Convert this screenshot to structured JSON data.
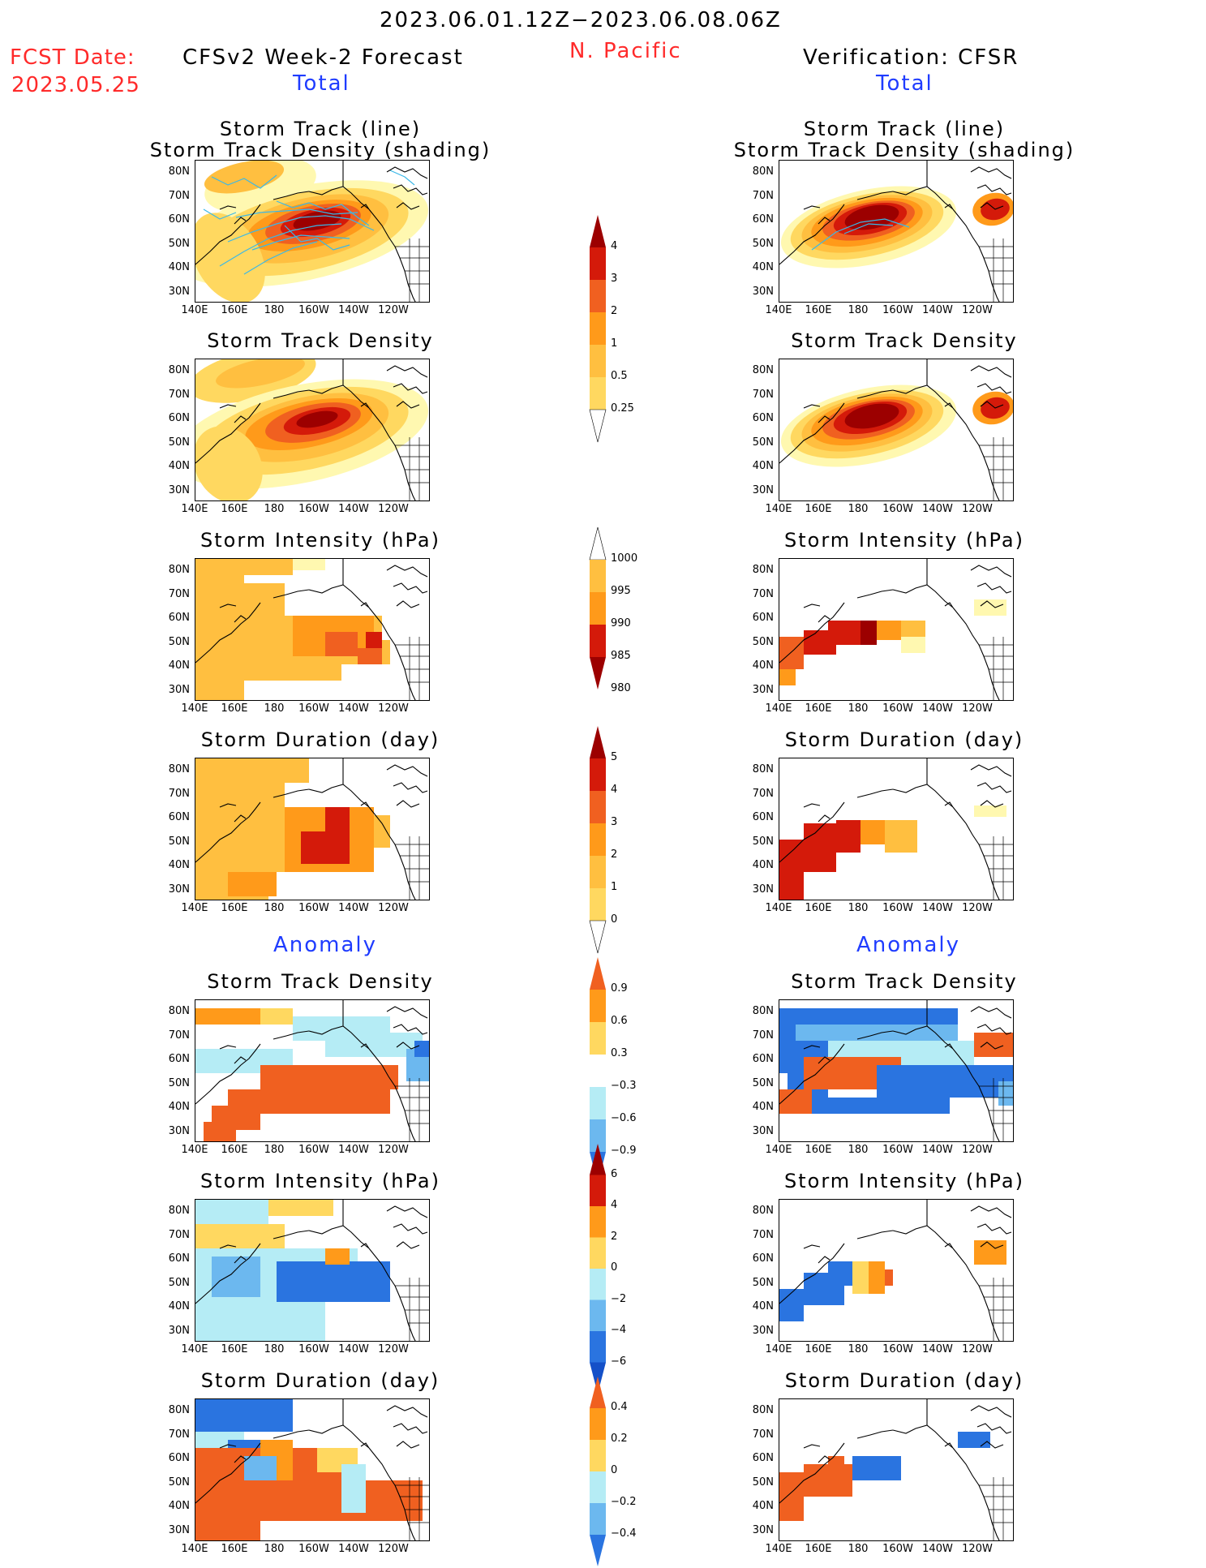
{
  "header": {
    "period": "2023.06.01.12Z−2023.06.08.06Z",
    "fcst_label": "FCST Date:",
    "fcst_date": "2023.05.25",
    "left_model": "CFSv2 Week-2 Forecast",
    "region": "N. Pacific",
    "right_model": "Verification: CFSR",
    "total_label": "Total",
    "anomaly_label": "Anomaly"
  },
  "axes": {
    "x_ticks": [
      "140E",
      "160E",
      "180",
      "160W",
      "140W",
      "120W"
    ],
    "y_ticks": [
      "80N",
      "70N",
      "60N",
      "50N",
      "40N",
      "30N"
    ]
  },
  "colors": {
    "yellow_light": "#fff8b0",
    "yellow": "#ffd860",
    "orange_light": "#ffbf40",
    "orange": "#ff9a1a",
    "orange_red": "#f06020",
    "red": "#d41a0a",
    "dark_red": "#9c0000",
    "light_blue": "#b5ecf5",
    "mid_blue": "#6cb8ef",
    "blue": "#2a74e0",
    "deep_blue": "#1450c8",
    "track_line": "#3ab8e8"
  },
  "chart_data": [
    {
      "type": "heatmap",
      "panel": "left-total-1",
      "title_line1": "Storm Track (line)",
      "title_line2": "Storm Track Density (shading)",
      "colorbar_levels": [
        0.25,
        0.5,
        1,
        2,
        3,
        4
      ],
      "colorbar_labels": [
        "4",
        "3",
        "2",
        "1",
        "0.5",
        "0.25"
      ]
    },
    {
      "type": "heatmap",
      "panel": "left-total-2",
      "title": "Storm Track Density"
    },
    {
      "type": "heatmap",
      "panel": "left-total-3",
      "title": "Storm Intensity (hPa)",
      "colorbar_levels": [
        980,
        985,
        990,
        995,
        1000
      ],
      "colorbar_labels": [
        "1000",
        "995",
        "990",
        "985",
        "980"
      ]
    },
    {
      "type": "heatmap",
      "panel": "left-total-4",
      "title": "Storm Duration (day)",
      "colorbar_levels": [
        0,
        1,
        2,
        3,
        4,
        5
      ],
      "colorbar_labels": [
        "5",
        "4",
        "3",
        "2",
        "1",
        "0"
      ]
    },
    {
      "type": "heatmap",
      "panel": "left-anom-1",
      "title": "Storm Track Density",
      "colorbar_levels": [
        -0.9,
        -0.6,
        -0.3,
        0.3,
        0.6,
        0.9
      ],
      "colorbar_labels": [
        "0.9",
        "0.6",
        "0.3",
        "−0.3",
        "−0.6",
        "−0.9"
      ]
    },
    {
      "type": "heatmap",
      "panel": "left-anom-2",
      "title": "Storm Intensity (hPa)",
      "colorbar_levels": [
        -6,
        -4,
        -2,
        0,
        2,
        4,
        6
      ],
      "colorbar_labels": [
        "6",
        "4",
        "2",
        "0",
        "−2",
        "−4",
        "−6"
      ]
    },
    {
      "type": "heatmap",
      "panel": "left-anom-3",
      "title": "Storm Duration (day)",
      "colorbar_levels": [
        -0.4,
        -0.2,
        0,
        0.2,
        0.4
      ],
      "colorbar_labels": [
        "0.4",
        "0.2",
        "0",
        "−0.2",
        "−0.4"
      ]
    }
  ]
}
